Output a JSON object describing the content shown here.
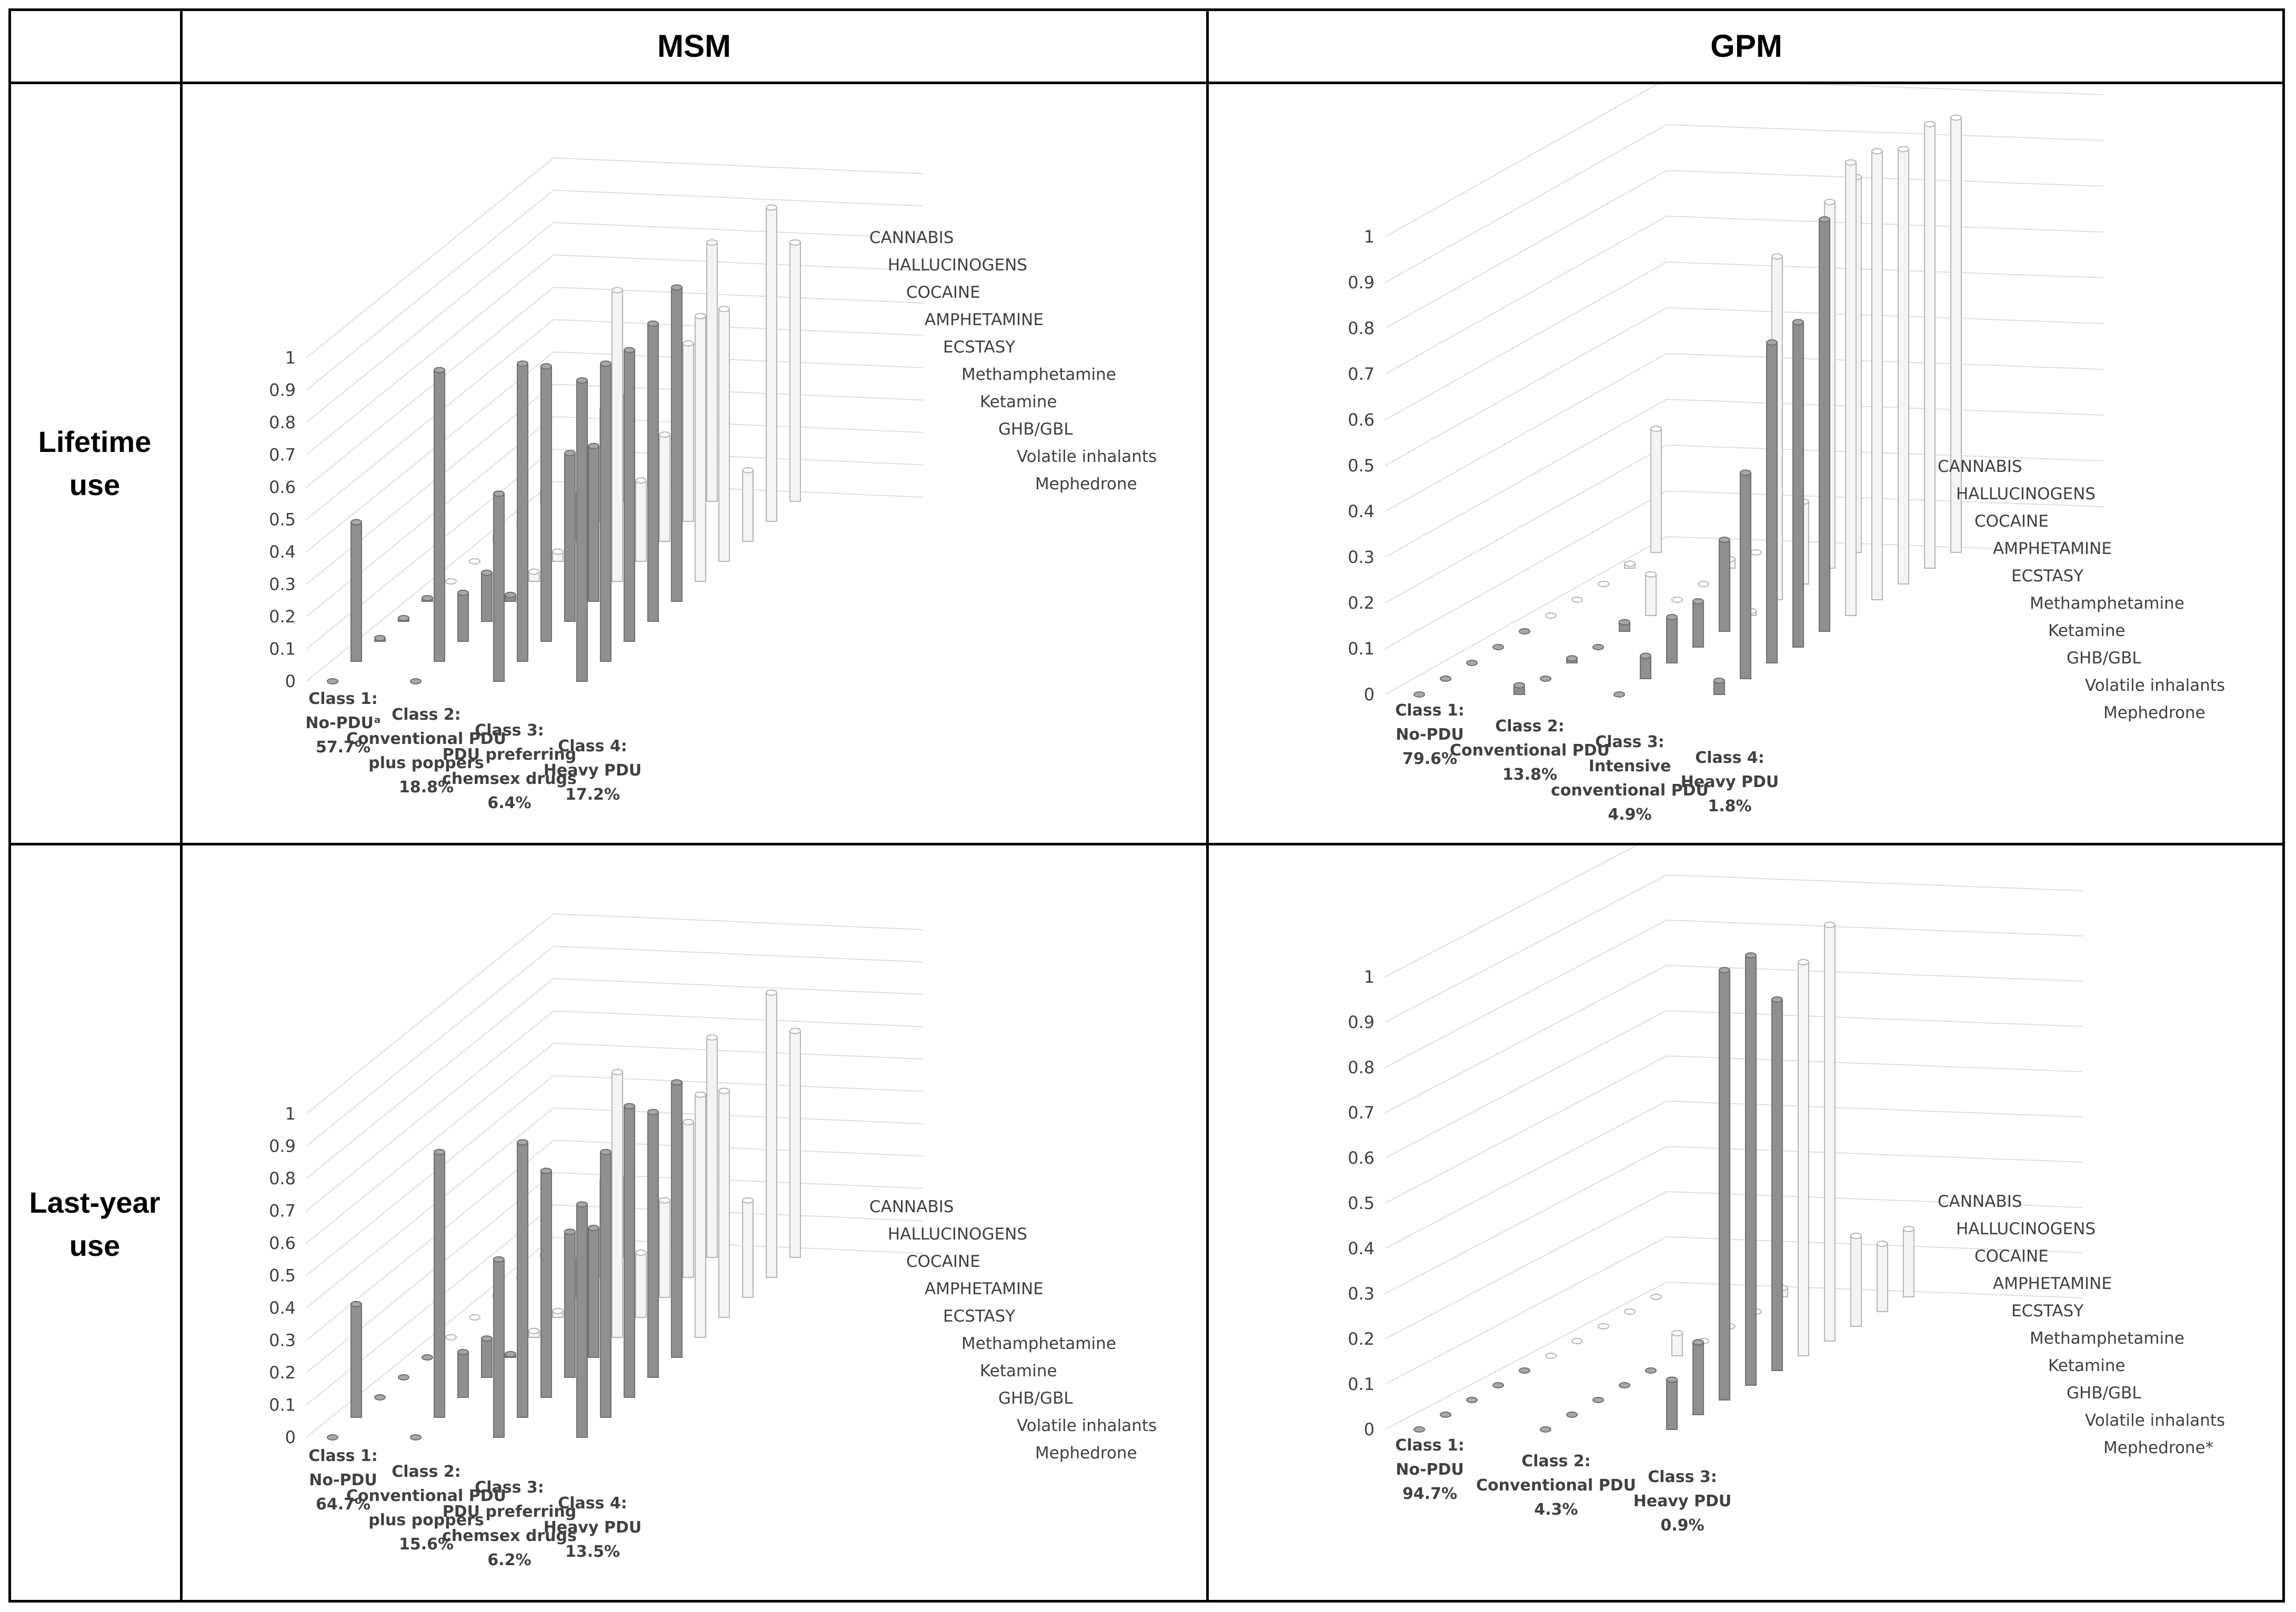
{
  "column_headers": {
    "corner": "",
    "msm": "MSM",
    "gpm": "GPM"
  },
  "row_headers": {
    "lifetime": {
      "line1": "Lifetime",
      "line2": "use"
    },
    "lastyear": {
      "line1": "Last-year",
      "line2": "use"
    }
  },
  "colors": {
    "stimulant_bar": "#8f8f8f",
    "other_bar": "#f4f4f4",
    "grid": "#dedede",
    "text": "#404040"
  },
  "chart_data": [
    {
      "id": "msm-lifetime",
      "type": "bar",
      "title": "MSM - Lifetime use",
      "ylim": [
        0,
        1
      ],
      "yticks": [
        "0",
        "0.1",
        "0.2",
        "0.3",
        "0.4",
        "0.5",
        "0.6",
        "0.7",
        "0.8",
        "0.9",
        "1"
      ],
      "depth_series": [
        "CANNABIS",
        "HALLUCINOGENS",
        "COCAINE",
        "AMPHETAMINE",
        "ECSTASY",
        "Methamphetamine",
        "Ketamine",
        "GHB/GBL",
        "Volatile inhalants",
        "Mephedrone"
      ],
      "categories": [
        {
          "lines": [
            "Class 1:",
            "No-PDUᵃ",
            "57.7%"
          ]
        },
        {
          "lines": [
            "Class 2:",
            "Conventional PDU",
            "plus poppers",
            "18.8%"
          ]
        },
        {
          "lines": [
            "Class 3:",
            "PDU preferring",
            "chemsex drugs",
            "6.4%"
          ]
        },
        {
          "lines": [
            "Class 4:",
            "Heavy PDU",
            "17.2%"
          ]
        }
      ],
      "values": [
        [
          0.0,
          0.43,
          0.01,
          0.01,
          0.01,
          0.0,
          0.0,
          0.02,
          0.0,
          0.03
        ],
        [
          0.0,
          0.9,
          0.15,
          0.15,
          0.02,
          0.03,
          0.03,
          0.15,
          0.35,
          0.33
        ],
        [
          0.58,
          0.92,
          0.85,
          0.52,
          0.48,
          0.9,
          0.25,
          0.33,
          0.55,
          0.8
        ],
        [
          0.93,
          0.92,
          0.9,
          0.92,
          0.97,
          0.82,
          0.78,
          0.22,
          0.97,
          0.8
        ]
      ]
    },
    {
      "id": "gpm-lifetime",
      "type": "bar",
      "title": "GPM - Lifetime use",
      "ylim": [
        0,
        1
      ],
      "yticks": [
        "0",
        "0.1",
        "0.2",
        "0.3",
        "0.4",
        "0.5",
        "0.6",
        "0.7",
        "0.8",
        "0.9",
        "1"
      ],
      "depth_series": [
        "CANNABIS",
        "HALLUCINOGENS",
        "COCAINE",
        "AMPHETAMINE",
        "ECSTASY",
        "Methamphetamine",
        "Ketamine",
        "GHB/GBL",
        "Volatile inhalants",
        "Mephedrone"
      ],
      "categories": [
        {
          "lines": [
            "Class 1:",
            "No-PDU",
            "79.6%"
          ]
        },
        {
          "lines": [
            "Class 2:",
            "Conventional PDU",
            "13.8%"
          ]
        },
        {
          "lines": [
            "Class 3:",
            "Intensive",
            "conventional PDU",
            "4.9%"
          ]
        },
        {
          "lines": [
            "Class 4:",
            "Heavy PDU",
            "1.8%"
          ]
        }
      ],
      "values": [
        [
          0.0,
          0.0,
          0.0,
          0.0,
          0.0,
          0.0,
          0.0,
          0.0,
          0.01,
          0.27
        ],
        [
          0.02,
          0.0,
          0.01,
          0.0,
          0.02,
          0.09,
          0.0,
          0.0,
          0.02,
          0.0
        ],
        [
          0.0,
          0.05,
          0.1,
          0.1,
          0.2,
          0.01,
          0.75,
          0.18,
          0.8,
          0.82
        ],
        [
          0.03,
          0.45,
          0.7,
          0.71,
          0.9,
          0.99,
          0.98,
          0.95,
          0.97,
          0.95
        ]
      ]
    },
    {
      "id": "msm-lastyear",
      "type": "bar",
      "title": "MSM - Last-year use",
      "ylim": [
        0,
        1
      ],
      "yticks": [
        "0",
        "0.1",
        "0.2",
        "0.3",
        "0.4",
        "0.5",
        "0.6",
        "0.7",
        "0.8",
        "0.9",
        "1"
      ],
      "depth_series": [
        "CANNABIS",
        "HALLUCINOGENS",
        "COCAINE",
        "AMPHETAMINE",
        "ECSTASY",
        "Methamphetamine",
        "Ketamine",
        "GHB/GBL",
        "Volatile inhalants",
        "Mephedrone"
      ],
      "categories": [
        {
          "lines": [
            "Class 1:",
            "No-PDU",
            "64.7%"
          ]
        },
        {
          "lines": [
            "Class 2:",
            "Conventional PDU",
            "plus poppers",
            "15.6%"
          ]
        },
        {
          "lines": [
            "Class 3:",
            "PDU preferring",
            "chemsex drugs",
            "6.2%"
          ]
        },
        {
          "lines": [
            "Class 4:",
            "Heavy PDU",
            "13.5%"
          ]
        }
      ],
      "values": [
        [
          0.0,
          0.35,
          0.0,
          0.0,
          0.0,
          0.0,
          0.0,
          0.01,
          0.0,
          0.01
        ],
        [
          0.0,
          0.82,
          0.14,
          0.12,
          0.01,
          0.02,
          0.02,
          0.12,
          0.3,
          0.25
        ],
        [
          0.55,
          0.85,
          0.7,
          0.45,
          0.4,
          0.82,
          0.2,
          0.3,
          0.48,
          0.68
        ],
        [
          0.72,
          0.82,
          0.9,
          0.82,
          0.85,
          0.75,
          0.7,
          0.3,
          0.88,
          0.7
        ]
      ]
    },
    {
      "id": "gpm-lastyear",
      "type": "bar",
      "title": "GPM - Last-year use",
      "ylim": [
        0,
        1
      ],
      "yticks": [
        "0",
        "0.1",
        "0.2",
        "0.3",
        "0.4",
        "0.5",
        "0.6",
        "0.7",
        "0.8",
        "0.9",
        "1"
      ],
      "depth_series": [
        "CANNABIS",
        "HALLUCINOGENS",
        "COCAINE",
        "AMPHETAMINE",
        "ECSTASY",
        "Methamphetamine",
        "Ketamine",
        "GHB/GBL",
        "Volatile inhalants",
        "Mephedrone*"
      ],
      "categories": [
        {
          "lines": [
            "Class 1:",
            "No-PDU",
            "94.7%"
          ]
        },
        {
          "lines": [
            "Class 2:",
            "Conventional PDU",
            "4.3%"
          ]
        },
        {
          "lines": [
            "Class 3:",
            "Heavy PDU",
            "0.9%"
          ]
        }
      ],
      "values": [
        [
          0.0,
          0.0,
          0.0,
          0.0,
          0.0,
          0.0,
          0.0,
          0.0,
          0.0,
          0.0
        ],
        [
          0.0,
          0.0,
          0.0,
          0.0,
          0.0,
          0.05,
          0.0,
          0.0,
          0.0,
          0.02
        ],
        [
          0.11,
          0.16,
          0.95,
          0.95,
          0.82,
          0.87,
          0.92,
          0.2,
          0.15,
          0.15
        ]
      ]
    }
  ]
}
